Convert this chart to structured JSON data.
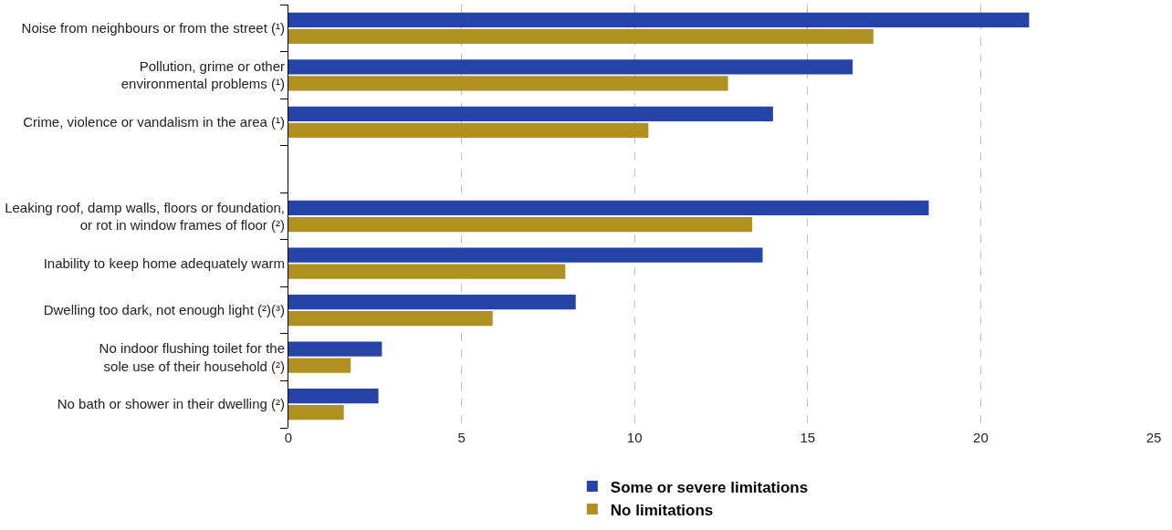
{
  "chart_data": {
    "type": "bar",
    "orientation": "horizontal",
    "categories": [
      "Noise from neighbours or from the street (¹)",
      "Pollution, grime or other\nenvironmental problems (¹)",
      "Crime, violence or vandalism in the area (¹)",
      null,
      "Leaking roof, damp walls, floors or foundation,\nor rot in window frames of floor (²)",
      "Inability to keep home adequately warm",
      "Dwelling too dark, not enough light (²)(³)",
      "No indoor flushing toilet for the\nsole use of their household (²)",
      "No bath or shower in their dwelling (²)"
    ],
    "series": [
      {
        "name": "Some or severe limitations",
        "color": "#2644a8",
        "values": [
          21.4,
          16.3,
          14.0,
          null,
          18.5,
          13.7,
          8.3,
          2.7,
          2.6
        ]
      },
      {
        "name": "No limitations",
        "color": "#b09020",
        "values": [
          16.9,
          12.7,
          10.4,
          null,
          13.4,
          8.0,
          5.9,
          1.8,
          1.6
        ]
      }
    ],
    "xlim": [
      0,
      25
    ],
    "xticks": [
      0,
      5,
      10,
      15,
      20,
      25
    ],
    "grid": "x",
    "legend": "bottom"
  }
}
